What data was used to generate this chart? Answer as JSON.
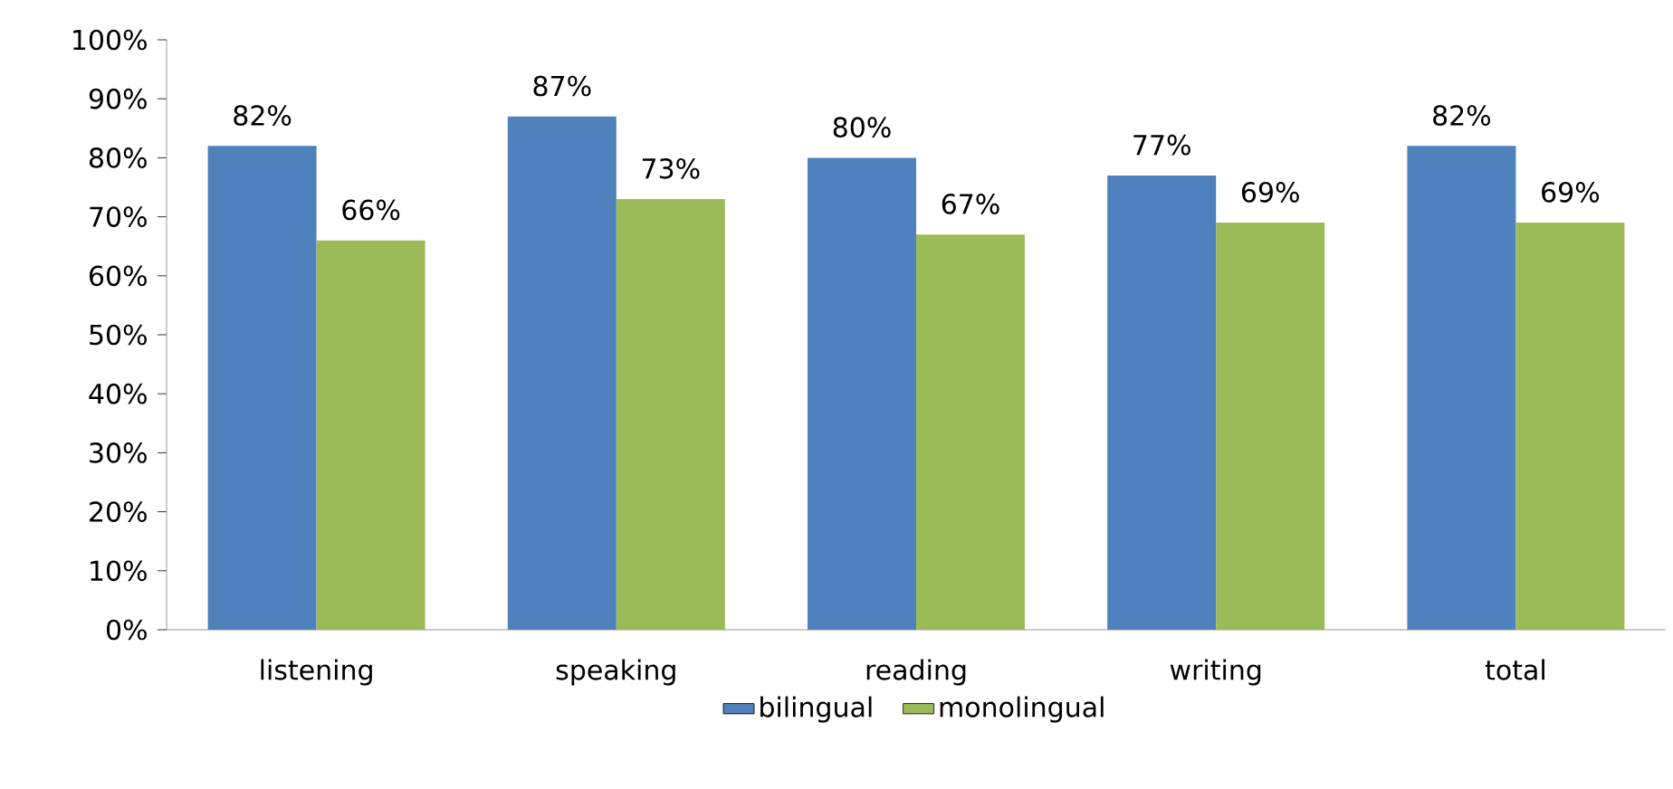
{
  "chart_data": {
    "type": "bar",
    "categories": [
      "listening",
      "speaking",
      "reading",
      "writing",
      "total"
    ],
    "series": [
      {
        "name": "bilingual",
        "color": "#4f81bd",
        "values": [
          82,
          87,
          80,
          77,
          82
        ],
        "value_labels": [
          "82%",
          "87%",
          "80%",
          "77%",
          "82%"
        ]
      },
      {
        "name": "monolingual",
        "color": "#9bbb59",
        "values": [
          66,
          73,
          67,
          69,
          69
        ],
        "value_labels": [
          "66%",
          "73%",
          "67%",
          "69%",
          "69%"
        ]
      }
    ],
    "ylim": [
      0,
      100
    ],
    "yticks": [
      {
        "value": 0,
        "label": "0%"
      },
      {
        "value": 10,
        "label": "10%"
      },
      {
        "value": 20,
        "label": "20%"
      },
      {
        "value": 30,
        "label": "30%"
      },
      {
        "value": 40,
        "label": "40%"
      },
      {
        "value": 50,
        "label": "50%"
      },
      {
        "value": 60,
        "label": "60%"
      },
      {
        "value": 70,
        "label": "70%"
      },
      {
        "value": 80,
        "label": "80%"
      },
      {
        "value": 90,
        "label": "90%"
      },
      {
        "value": 100,
        "label": "100%"
      }
    ],
    "grid": false,
    "legend": "bottom"
  }
}
